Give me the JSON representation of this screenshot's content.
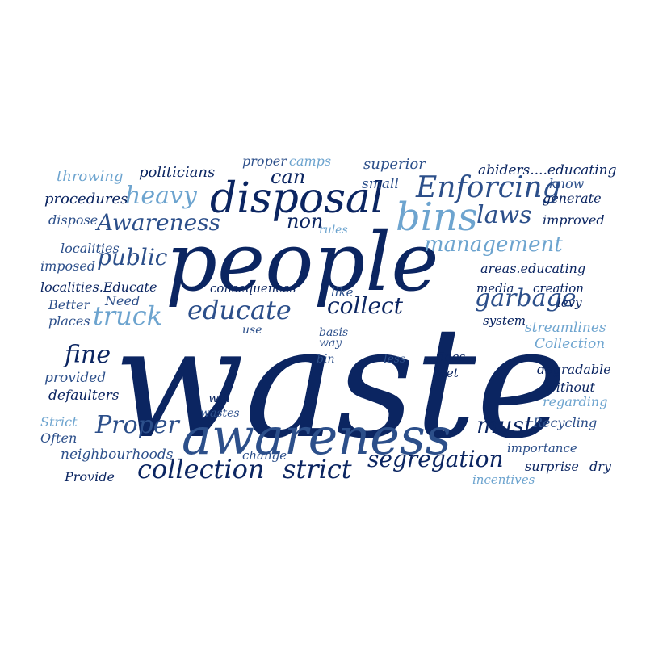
{
  "words": [
    {
      "text": "waste",
      "color": "#0b2561"
    },
    {
      "text": "people",
      "color": "#0b2561"
    },
    {
      "text": "awareness",
      "color": "#2c4f8a"
    },
    {
      "text": "disposal",
      "color": "#0b2561"
    },
    {
      "text": "bins",
      "color": "#6da4cf"
    },
    {
      "text": "Enforcing",
      "color": "#2c4f8a"
    },
    {
      "text": "Awareness",
      "color": "#2c4f8a"
    },
    {
      "text": "heavy",
      "color": "#6da4cf"
    },
    {
      "text": "management",
      "color": "#6da4cf"
    },
    {
      "text": "laws",
      "color": "#2c4f8a"
    },
    {
      "text": "public",
      "color": "#2c4f8a"
    },
    {
      "text": "collection",
      "color": "#0b2561"
    },
    {
      "text": "strict",
      "color": "#0b2561"
    },
    {
      "text": "segregation",
      "color": "#0b2561"
    },
    {
      "text": "Proper",
      "color": "#2c4f8a"
    },
    {
      "text": "garbage",
      "color": "#2c4f8a"
    },
    {
      "text": "educate",
      "color": "#2c4f8a"
    },
    {
      "text": "collect",
      "color": "#0b2561"
    },
    {
      "text": "truck",
      "color": "#6da4cf"
    },
    {
      "text": "fine",
      "color": "#0b2561"
    },
    {
      "text": "must",
      "color": "#0b2561"
    },
    {
      "text": "can",
      "color": "#0b2561"
    },
    {
      "text": "non",
      "color": "#0b2561"
    },
    {
      "text": "throwing",
      "color": "#6da4cf"
    },
    {
      "text": "politicians",
      "color": "#0b2561"
    },
    {
      "text": "proper",
      "color": "#2c4f8a"
    },
    {
      "text": "camps",
      "color": "#6da4cf"
    },
    {
      "text": "superior",
      "color": "#2c4f8a"
    },
    {
      "text": "abiders....educating",
      "color": "#0b2561"
    },
    {
      "text": "small",
      "color": "#2c4f8a"
    },
    {
      "text": "know",
      "color": "#2c4f8a"
    },
    {
      "text": "generate",
      "color": "#0b2561"
    },
    {
      "text": "procedures",
      "color": "#0b2561"
    },
    {
      "text": "dispose",
      "color": "#2c4f8a"
    },
    {
      "text": "rules",
      "color": "#6da4cf"
    },
    {
      "text": "improved",
      "color": "#0b2561"
    },
    {
      "text": "localities",
      "color": "#2c4f8a"
    },
    {
      "text": "imposed",
      "color": "#2c4f8a"
    },
    {
      "text": "areas.educating",
      "color": "#0b2561"
    },
    {
      "text": "localities.Educate",
      "color": "#0b2561"
    },
    {
      "text": "consequences",
      "color": "#0b2561"
    },
    {
      "text": "media",
      "color": "#0b2561"
    },
    {
      "text": "creation",
      "color": "#0b2561"
    },
    {
      "text": "Better",
      "color": "#2c4f8a"
    },
    {
      "text": "Need",
      "color": "#2c4f8a"
    },
    {
      "text": "like",
      "color": "#2c4f8a"
    },
    {
      "text": "levy",
      "color": "#0b2561"
    },
    {
      "text": "places",
      "color": "#2c4f8a"
    },
    {
      "text": "system",
      "color": "#0b2561"
    },
    {
      "text": "use",
      "color": "#2c4f8a"
    },
    {
      "text": "basis",
      "color": "#2c4f8a"
    },
    {
      "text": "streamlines",
      "color": "#6da4cf"
    },
    {
      "text": "way",
      "color": "#2c4f8a"
    },
    {
      "text": "bin",
      "color": "#2c4f8a"
    },
    {
      "text": "Collection",
      "color": "#6da4cf"
    },
    {
      "text": "less",
      "color": "#2c4f8a"
    },
    {
      "text": "fines",
      "color": "#0b2561"
    },
    {
      "text": "provided",
      "color": "#2c4f8a"
    },
    {
      "text": "wet",
      "color": "#0b2561"
    },
    {
      "text": "degradable",
      "color": "#0b2561"
    },
    {
      "text": "defaulters",
      "color": "#0b2561"
    },
    {
      "text": "without",
      "color": "#0b2561"
    },
    {
      "text": "will",
      "color": "#0b2561"
    },
    {
      "text": "regarding",
      "color": "#6da4cf"
    },
    {
      "text": "wastes",
      "color": "#2c4f8a"
    },
    {
      "text": "Strict",
      "color": "#6da4cf"
    },
    {
      "text": "Often",
      "color": "#2c4f8a"
    },
    {
      "text": "Recycling",
      "color": "#2c4f8a"
    },
    {
      "text": "importance",
      "color": "#2c4f8a"
    },
    {
      "text": "neighbourhoods",
      "color": "#2c4f8a"
    },
    {
      "text": "change",
      "color": "#2c4f8a"
    },
    {
      "text": "surprise",
      "color": "#0b2561"
    },
    {
      "text": "dry",
      "color": "#0b2561"
    },
    {
      "text": "Provide",
      "color": "#0b2561"
    },
    {
      "text": "incentives",
      "color": "#6da4cf"
    }
  ]
}
